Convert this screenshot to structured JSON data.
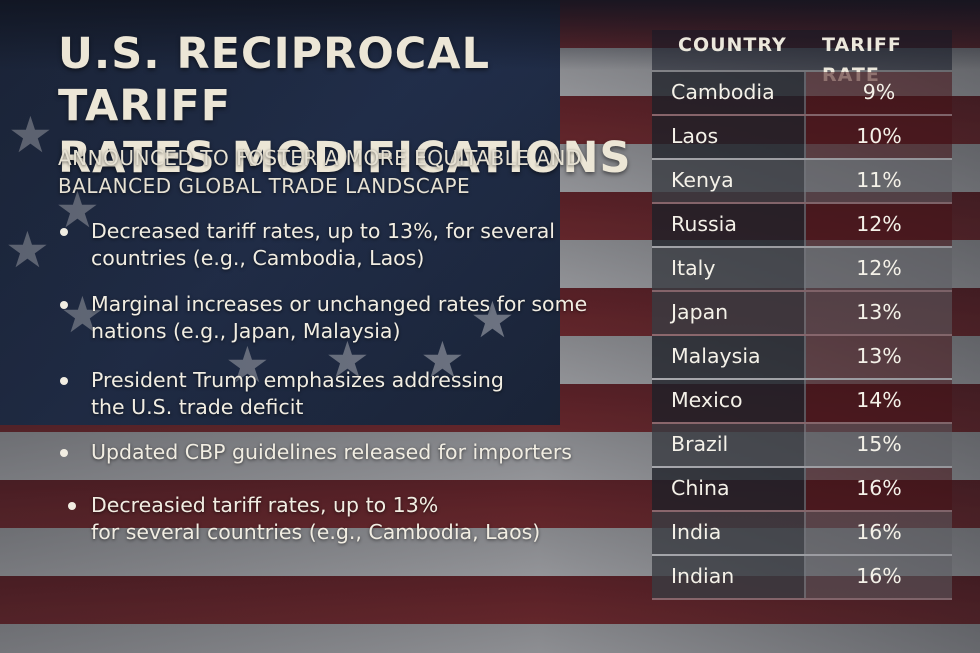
{
  "title": {
    "line1": "U.S. RECIPROCAL TARIFF",
    "line2": "RATES MODIFICATIONS"
  },
  "subtitle": {
    "line1": "ANNOUNCED TO FOSTER A MORE EQUITABLE AND",
    "line2": "BALANCED GLOBAL TRADE LANDSCAPE"
  },
  "bullets": [
    {
      "line1": "Decreased tariff rates, up to 13%, for several",
      "line2": "countries (e.g., Cambodia, Laos)"
    },
    {
      "line1": "Marginal increases or unchanged rates for some",
      "line2": "nations (e.g., Japan, Malaysia)"
    },
    {
      "line1": "President Trump emphasizes addressing",
      "line2": "the U.S. trade deficit"
    },
    {
      "line1": "Updated CBP guidelines released for importers",
      "line2": ""
    },
    {
      "line1": "Decreasied tariff rates, up to 13%",
      "line2": "for several countries (e.g., Cambodia, Laos)"
    }
  ],
  "table": {
    "headers": {
      "country": "COUNTRY",
      "rate": "TARIFF RATE"
    },
    "rows": [
      {
        "country": "Cambodia",
        "rate": "9%"
      },
      {
        "country": "Laos",
        "rate": "10%"
      },
      {
        "country": "Kenya",
        "rate": "11%"
      },
      {
        "country": "Russia",
        "rate": "12%"
      },
      {
        "country": "Italy",
        "rate": "12%"
      },
      {
        "country": "Japan",
        "rate": "13%"
      },
      {
        "country": "Malaysia",
        "rate": "13%"
      },
      {
        "country": "Mexico",
        "rate": "14%"
      },
      {
        "country": "Brazil",
        "rate": "15%"
      },
      {
        "country": "China",
        "rate": "16%"
      },
      {
        "country": "India",
        "rate": "16%"
      },
      {
        "country": "Indian",
        "rate": "16%"
      }
    ]
  }
}
